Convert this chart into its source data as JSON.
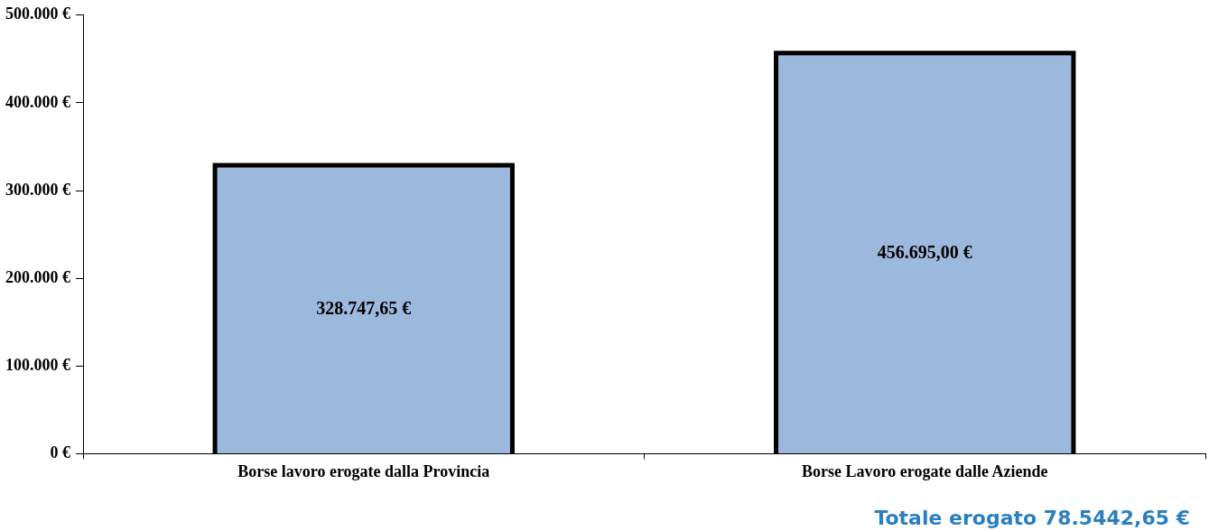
{
  "chart_data": {
    "type": "bar",
    "categories": [
      "Borse lavoro erogate dalla Provincia",
      "Borse Lavoro erogate dalle Aziende"
    ],
    "values": [
      328747.65,
      456695.0
    ],
    "value_labels": [
      "328.747,65 €",
      "456.695,00 €"
    ],
    "color": "#9db8dd",
    "ylim": [
      0,
      500000
    ],
    "yticks": [
      {
        "value": 0,
        "label": "0 €"
      },
      {
        "value": 100000,
        "label": "100.000 €"
      },
      {
        "value": 200000,
        "label": "200.000 €"
      },
      {
        "value": 300000,
        "label": "300.000 €"
      },
      {
        "value": 400000,
        "label": "400.000 €"
      },
      {
        "value": 500000,
        "label": "500.000 €"
      }
    ],
    "grid": false,
    "legend": false,
    "annotations": [
      "Totale erogato 78.5442,65 €"
    ]
  }
}
